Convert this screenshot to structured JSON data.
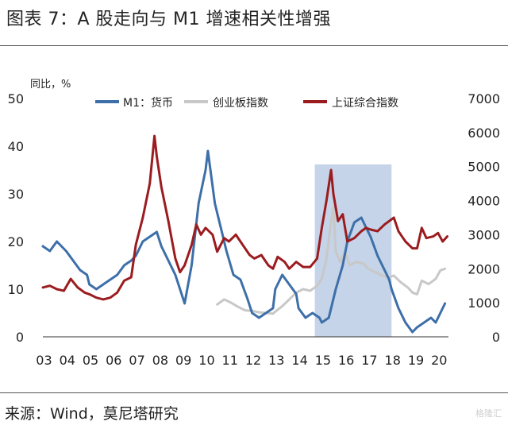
{
  "title": "图表 7：A 股走向与 M1 增速相关性增强",
  "source": "来源：Wind，莫尼塔研究",
  "watermark": "格隆汇",
  "chart_data": {
    "type": "line",
    "unit_label": "同比，%",
    "x_tick_labels": [
      "03",
      "04",
      "05",
      "06",
      "07",
      "08",
      "09",
      "10",
      "11",
      "12",
      "13",
      "14",
      "15",
      "16",
      "17",
      "18",
      "19",
      "20"
    ],
    "y_left": {
      "lim": [
        0,
        50
      ],
      "ticks": [
        "0",
        "10",
        "20",
        "30",
        "40",
        "50"
      ]
    },
    "y_right": {
      "lim": [
        0,
        7000
      ],
      "ticks": [
        "0",
        "1000",
        "2000",
        "3000",
        "4000",
        "5000",
        "6000",
        "7000"
      ]
    },
    "highlight_x": [
      2014.7,
      2018.0
    ],
    "colors": {
      "m1": "#3d6fa8",
      "cyb": "#c8c8c8",
      "sh": "#9b1c1f",
      "band": "#c5d4e8"
    },
    "series": [
      {
        "name": "M1：货币",
        "axis": "left",
        "points": [
          [
            2003.0,
            19
          ],
          [
            2003.3,
            18
          ],
          [
            2003.6,
            20
          ],
          [
            2004.0,
            18
          ],
          [
            2004.3,
            16
          ],
          [
            2004.6,
            14
          ],
          [
            2004.9,
            13
          ],
          [
            2005.0,
            11
          ],
          [
            2005.3,
            10
          ],
          [
            2005.6,
            11
          ],
          [
            2005.9,
            12
          ],
          [
            2006.2,
            13
          ],
          [
            2006.5,
            15
          ],
          [
            2006.8,
            16
          ],
          [
            2007.0,
            17
          ],
          [
            2007.3,
            20
          ],
          [
            2007.6,
            21
          ],
          [
            2007.9,
            22
          ],
          [
            2008.1,
            19
          ],
          [
            2008.4,
            16
          ],
          [
            2008.7,
            13
          ],
          [
            2008.9,
            10
          ],
          [
            2009.1,
            7
          ],
          [
            2009.4,
            15
          ],
          [
            2009.7,
            28
          ],
          [
            2010.0,
            35
          ],
          [
            2010.1,
            39
          ],
          [
            2010.4,
            28
          ],
          [
            2010.7,
            22
          ],
          [
            2010.9,
            18
          ],
          [
            2011.2,
            13
          ],
          [
            2011.5,
            12
          ],
          [
            2011.8,
            8
          ],
          [
            2012.0,
            5
          ],
          [
            2012.3,
            4
          ],
          [
            2012.6,
            5
          ],
          [
            2012.9,
            6
          ],
          [
            2013.0,
            10
          ],
          [
            2013.3,
            13
          ],
          [
            2013.6,
            11
          ],
          [
            2013.9,
            9
          ],
          [
            2014.0,
            6
          ],
          [
            2014.3,
            4
          ],
          [
            2014.6,
            5
          ],
          [
            2014.9,
            4
          ],
          [
            2015.0,
            3
          ],
          [
            2015.3,
            4
          ],
          [
            2015.6,
            10
          ],
          [
            2015.9,
            15
          ],
          [
            2016.1,
            20
          ],
          [
            2016.4,
            24
          ],
          [
            2016.7,
            25
          ],
          [
            2016.9,
            23
          ],
          [
            2017.1,
            21
          ],
          [
            2017.4,
            17
          ],
          [
            2017.7,
            14
          ],
          [
            2017.9,
            12
          ],
          [
            2018.0,
            10
          ],
          [
            2018.3,
            6
          ],
          [
            2018.6,
            3
          ],
          [
            2018.9,
            1
          ],
          [
            2019.1,
            2
          ],
          [
            2019.4,
            3
          ],
          [
            2019.7,
            4
          ],
          [
            2019.9,
            3
          ],
          [
            2020.1,
            5
          ],
          [
            2020.3,
            7
          ]
        ]
      },
      {
        "name": "创业板指数",
        "axis": "right",
        "points": [
          [
            2010.5,
            950
          ],
          [
            2010.8,
            1100
          ],
          [
            2011.1,
            1000
          ],
          [
            2011.4,
            880
          ],
          [
            2011.7,
            780
          ],
          [
            2012.0,
            760
          ],
          [
            2012.3,
            720
          ],
          [
            2012.6,
            700
          ],
          [
            2012.9,
            680
          ],
          [
            2013.0,
            740
          ],
          [
            2013.3,
            900
          ],
          [
            2013.6,
            1100
          ],
          [
            2013.9,
            1300
          ],
          [
            2014.2,
            1400
          ],
          [
            2014.5,
            1350
          ],
          [
            2014.8,
            1500
          ],
          [
            2015.0,
            1700
          ],
          [
            2015.2,
            2300
          ],
          [
            2015.4,
            3400
          ],
          [
            2015.5,
            3800
          ],
          [
            2015.6,
            2500
          ],
          [
            2015.8,
            2200
          ],
          [
            2016.0,
            2500
          ],
          [
            2016.2,
            2100
          ],
          [
            2016.5,
            2200
          ],
          [
            2016.8,
            2150
          ],
          [
            2017.0,
            2000
          ],
          [
            2017.3,
            1900
          ],
          [
            2017.6,
            1800
          ],
          [
            2017.9,
            1750
          ],
          [
            2018.1,
            1800
          ],
          [
            2018.4,
            1600
          ],
          [
            2018.7,
            1450
          ],
          [
            2018.9,
            1300
          ],
          [
            2019.1,
            1250
          ],
          [
            2019.3,
            1650
          ],
          [
            2019.6,
            1550
          ],
          [
            2019.9,
            1700
          ],
          [
            2020.1,
            1950
          ],
          [
            2020.3,
            2000
          ]
        ]
      },
      {
        "name": "上证综合指数",
        "axis": "right",
        "points": [
          [
            2003.0,
            1450
          ],
          [
            2003.3,
            1500
          ],
          [
            2003.6,
            1400
          ],
          [
            2003.9,
            1350
          ],
          [
            2004.2,
            1700
          ],
          [
            2004.5,
            1450
          ],
          [
            2004.8,
            1300
          ],
          [
            2005.0,
            1250
          ],
          [
            2005.3,
            1150
          ],
          [
            2005.6,
            1100
          ],
          [
            2005.9,
            1150
          ],
          [
            2006.2,
            1300
          ],
          [
            2006.5,
            1650
          ],
          [
            2006.8,
            1750
          ],
          [
            2007.0,
            2700
          ],
          [
            2007.3,
            3500
          ],
          [
            2007.6,
            4500
          ],
          [
            2007.8,
            5900
          ],
          [
            2007.9,
            5300
          ],
          [
            2008.1,
            4400
          ],
          [
            2008.4,
            3400
          ],
          [
            2008.7,
            2300
          ],
          [
            2008.9,
            1900
          ],
          [
            2009.1,
            2100
          ],
          [
            2009.4,
            2700
          ],
          [
            2009.6,
            3300
          ],
          [
            2009.8,
            3000
          ],
          [
            2010.0,
            3200
          ],
          [
            2010.3,
            3000
          ],
          [
            2010.5,
            2500
          ],
          [
            2010.8,
            2900
          ],
          [
            2011.0,
            2800
          ],
          [
            2011.3,
            3000
          ],
          [
            2011.6,
            2700
          ],
          [
            2011.9,
            2400
          ],
          [
            2012.1,
            2300
          ],
          [
            2012.4,
            2400
          ],
          [
            2012.7,
            2100
          ],
          [
            2012.9,
            2000
          ],
          [
            2013.1,
            2350
          ],
          [
            2013.4,
            2200
          ],
          [
            2013.6,
            2000
          ],
          [
            2013.9,
            2200
          ],
          [
            2014.2,
            2050
          ],
          [
            2014.5,
            2050
          ],
          [
            2014.8,
            2300
          ],
          [
            2015.0,
            3200
          ],
          [
            2015.2,
            4000
          ],
          [
            2015.4,
            4900
          ],
          [
            2015.5,
            4200
          ],
          [
            2015.7,
            3400
          ],
          [
            2015.9,
            3600
          ],
          [
            2016.1,
            2800
          ],
          [
            2016.4,
            2900
          ],
          [
            2016.7,
            3100
          ],
          [
            2016.9,
            3200
          ],
          [
            2017.1,
            3150
          ],
          [
            2017.4,
            3100
          ],
          [
            2017.7,
            3300
          ],
          [
            2017.9,
            3400
          ],
          [
            2018.1,
            3500
          ],
          [
            2018.3,
            3100
          ],
          [
            2018.6,
            2800
          ],
          [
            2018.9,
            2600
          ],
          [
            2019.1,
            2600
          ],
          [
            2019.3,
            3200
          ],
          [
            2019.5,
            2900
          ],
          [
            2019.8,
            2950
          ],
          [
            2020.0,
            3050
          ],
          [
            2020.2,
            2800
          ],
          [
            2020.4,
            2950
          ]
        ]
      }
    ]
  }
}
